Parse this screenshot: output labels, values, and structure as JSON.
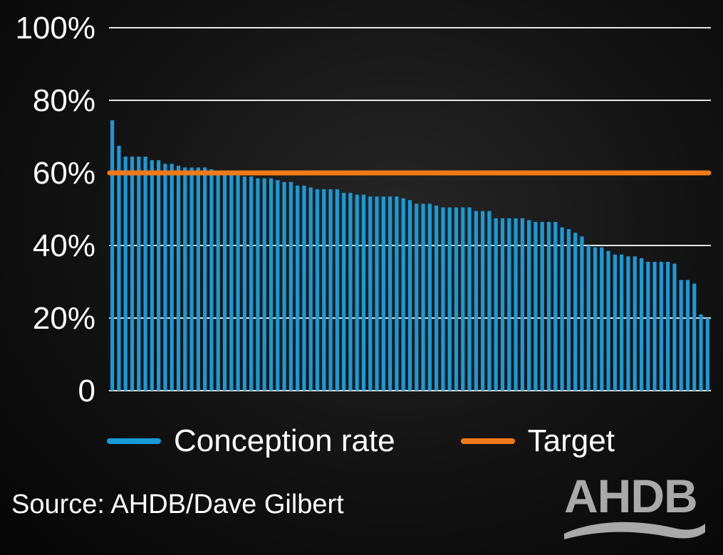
{
  "chart_data": {
    "type": "bar",
    "title": "",
    "xlabel": "",
    "ylabel": "",
    "ylim": [
      0,
      100
    ],
    "y_ticks": [
      "0",
      "20%",
      "40%",
      "60%",
      "80%",
      "100%"
    ],
    "y_tick_values": [
      0,
      20,
      40,
      60,
      80,
      100
    ],
    "grid": true,
    "legend_position": "bottom",
    "series": [
      {
        "name": "Conception rate",
        "type": "bar",
        "color": "#1a9ad6",
        "values": [
          74.5,
          67.5,
          64.5,
          64.5,
          64.5,
          64.5,
          63.5,
          63.5,
          62.5,
          62.5,
          62,
          61.5,
          61.5,
          61.5,
          61.5,
          61,
          60.5,
          60,
          59.5,
          59.5,
          59,
          59,
          58.5,
          58.5,
          58.5,
          58,
          57.5,
          57.5,
          56.5,
          56.5,
          56,
          55.5,
          55.5,
          55.5,
          55.5,
          54.5,
          54.5,
          54,
          54,
          53.5,
          53.5,
          53.5,
          53.5,
          53.5,
          53,
          52.5,
          51.5,
          51.5,
          51.5,
          51,
          50.5,
          50.5,
          50.5,
          50.5,
          50.5,
          49.5,
          49.5,
          49.5,
          47.5,
          47.5,
          47.5,
          47.5,
          47.5,
          47,
          46.5,
          46.5,
          46.5,
          46.5,
          45,
          44.5,
          43.5,
          42.5,
          40,
          39.5,
          39.5,
          38.5,
          37.5,
          37.5,
          37,
          37,
          36.5,
          35.5,
          35.5,
          35.5,
          35.5,
          35,
          30.5,
          30.5,
          29.5,
          21,
          20
        ]
      },
      {
        "name": "Target",
        "type": "line",
        "color": "#f07a1a",
        "value": 60
      }
    ]
  },
  "source_text": "Source: AHDB/Dave Gilbert",
  "logo_text": "AHDB",
  "colors": {
    "background": "#141414",
    "grid": "#e6e6e6",
    "text": "#ffffff",
    "logo": "#a9a9a9"
  }
}
